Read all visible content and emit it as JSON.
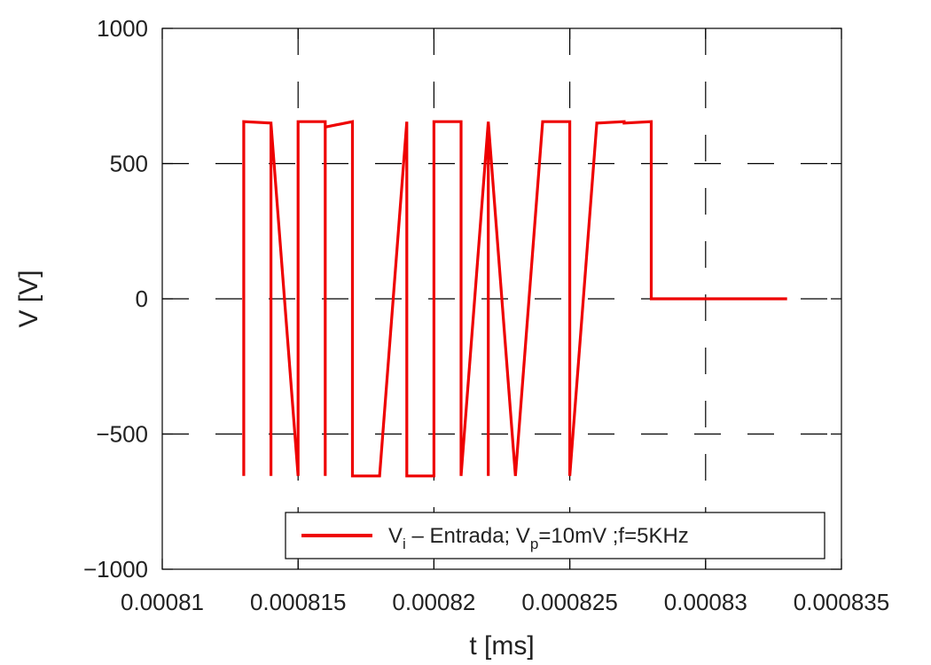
{
  "chart_data": {
    "type": "line",
    "xlabel": "t [ms]",
    "ylabel": "V [V]",
    "xlim": [
      0.00081,
      0.000835
    ],
    "ylim": [
      -1000,
      1000
    ],
    "x_ticks": [
      "0.00081",
      "0.000815",
      "0.00082",
      "0.000825",
      "0.00083",
      "0.000835"
    ],
    "y_ticks": [
      "1000",
      "500",
      "0",
      "−500",
      "−1000"
    ],
    "grid": true,
    "legend_position": "bottom-right",
    "legend": {
      "main": "V",
      "sub1": "i",
      "mid": " – Entrada; V",
      "sub2": "p",
      "tail": "=10mV ;f=5KHz"
    },
    "series": [
      {
        "color": "#ee0000",
        "x": [
          0.000813,
          0.000813,
          0.000814,
          0.000814,
          0.000814,
          0.000815,
          0.000815,
          0.000816,
          0.000816,
          0.000816,
          0.000817,
          0.000817,
          0.000818,
          0.000819,
          0.000819,
          0.00082,
          0.00082,
          0.000821,
          0.000821,
          0.000822,
          0.000822,
          0.000822,
          0.000823,
          0.000823,
          0.000824,
          0.000824,
          0.000825,
          0.000825,
          0.000826,
          0.000826,
          0.000827,
          0.000827,
          0.000828,
          0.000828,
          0.000829,
          0.00083,
          0.000831,
          0.000832,
          0.000833
        ],
        "y": [
          -655,
          655,
          650,
          -655,
          650,
          -655,
          655,
          655,
          -655,
          635,
          655,
          -655,
          -655,
          655,
          -655,
          -655,
          655,
          655,
          -655,
          655,
          -655,
          655,
          -655,
          -655,
          655,
          655,
          655,
          -655,
          655,
          650,
          655,
          650,
          655,
          0,
          0,
          0,
          0,
          0,
          0
        ]
      }
    ]
  }
}
